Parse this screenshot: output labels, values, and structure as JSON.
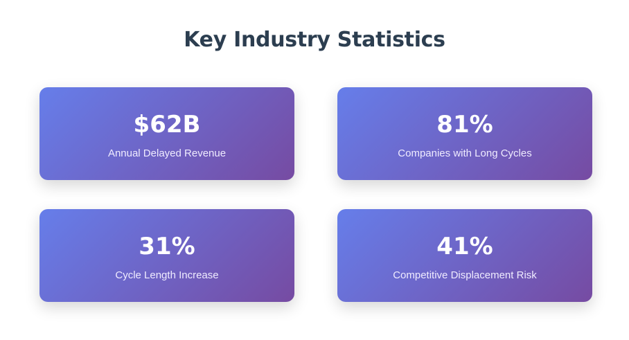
{
  "header": {
    "title": "Key Industry Statistics"
  },
  "stats": [
    {
      "value": "$62B",
      "label": "Annual Delayed Revenue"
    },
    {
      "value": "81%",
      "label": "Companies with Long Cycles"
    },
    {
      "value": "31%",
      "label": "Cycle Length Increase"
    },
    {
      "value": "41%",
      "label": "Competitive Displacement Risk"
    }
  ],
  "colors": {
    "title": "#2c3e50",
    "card_gradient_start": "#667eea",
    "card_gradient_end": "#764ba2",
    "card_text": "#ffffff"
  }
}
